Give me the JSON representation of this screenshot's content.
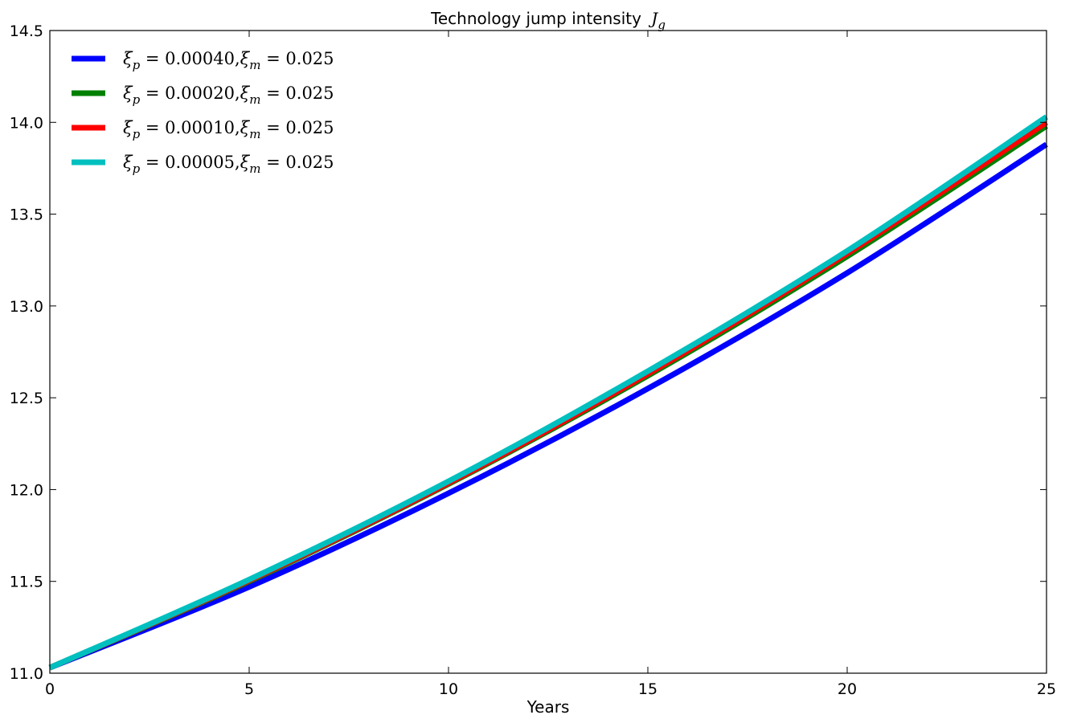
{
  "chart_data": {
    "type": "line",
    "title": "Technology jump intensity",
    "title_symbol": "J",
    "title_symbol_sub": "g",
    "xlabel": "Years",
    "ylabel": "",
    "xlim": [
      0,
      25
    ],
    "ylim": [
      11.0,
      14.5
    ],
    "xticks": [
      0,
      5,
      10,
      15,
      20,
      25
    ],
    "yticks": [
      11.0,
      11.5,
      12.0,
      12.5,
      13.0,
      13.5,
      14.0,
      14.5
    ],
    "xtick_labels": [
      "0",
      "5",
      "10",
      "15",
      "20",
      "25"
    ],
    "ytick_labels": [
      "11.0",
      "11.5",
      "12.0",
      "12.5",
      "13.0",
      "13.5",
      "14.0",
      "14.5"
    ],
    "grid": false,
    "legend_position": "top-left",
    "x": [
      0,
      5,
      10,
      15,
      20,
      25
    ],
    "series": [
      {
        "name": "ξp = 0.00040, ξm = 0.025",
        "xi_p": "0.00040",
        "xi_m": "0.025",
        "color": "#0000ff",
        "values": [
          11.03,
          11.47,
          11.98,
          12.55,
          13.18,
          13.88
        ]
      },
      {
        "name": "ξp = 0.00020, ξm = 0.025",
        "xi_p": "0.00020",
        "xi_m": "0.025",
        "color": "#008000",
        "values": [
          11.03,
          11.5,
          12.03,
          12.62,
          13.27,
          13.98
        ]
      },
      {
        "name": "ξp = 0.00010, ξm = 0.025",
        "xi_p": "0.00010",
        "xi_m": "0.025",
        "color": "#ff0000",
        "values": [
          11.03,
          11.505,
          12.035,
          12.63,
          13.285,
          14.0
        ]
      },
      {
        "name": "ξp = 0.00005, ξm = 0.025",
        "xi_p": "0.00005",
        "xi_m": "0.025",
        "color": "#00bfbf",
        "values": [
          11.03,
          11.51,
          12.045,
          12.645,
          13.3,
          14.03
        ]
      }
    ]
  }
}
